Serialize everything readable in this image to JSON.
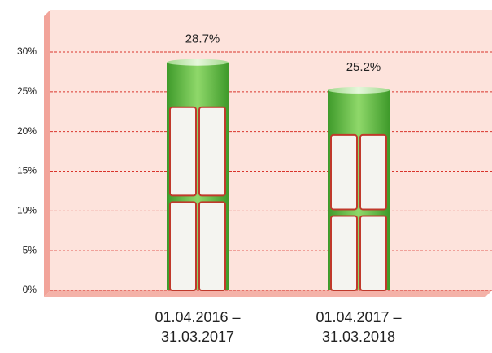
{
  "chart_data": {
    "type": "bar",
    "categories": [
      "01.04.2016 – 31.03.2017",
      "01.04.2017 – 31.03.2018"
    ],
    "values": [
      28.7,
      25.2
    ],
    "value_labels": [
      "28.7%",
      "25.2%"
    ],
    "color": "#5cb83a",
    "ylim": [
      0,
      35
    ],
    "yticks": [
      {
        "value": 0,
        "label": "0%"
      },
      {
        "value": 5,
        "label": "5%"
      },
      {
        "value": 10,
        "label": "10%"
      },
      {
        "value": 15,
        "label": "15%"
      },
      {
        "value": 20,
        "label": "20%"
      },
      {
        "value": 25,
        "label": "25%"
      },
      {
        "value": 30,
        "label": "30%"
      }
    ],
    "grid": true
  }
}
